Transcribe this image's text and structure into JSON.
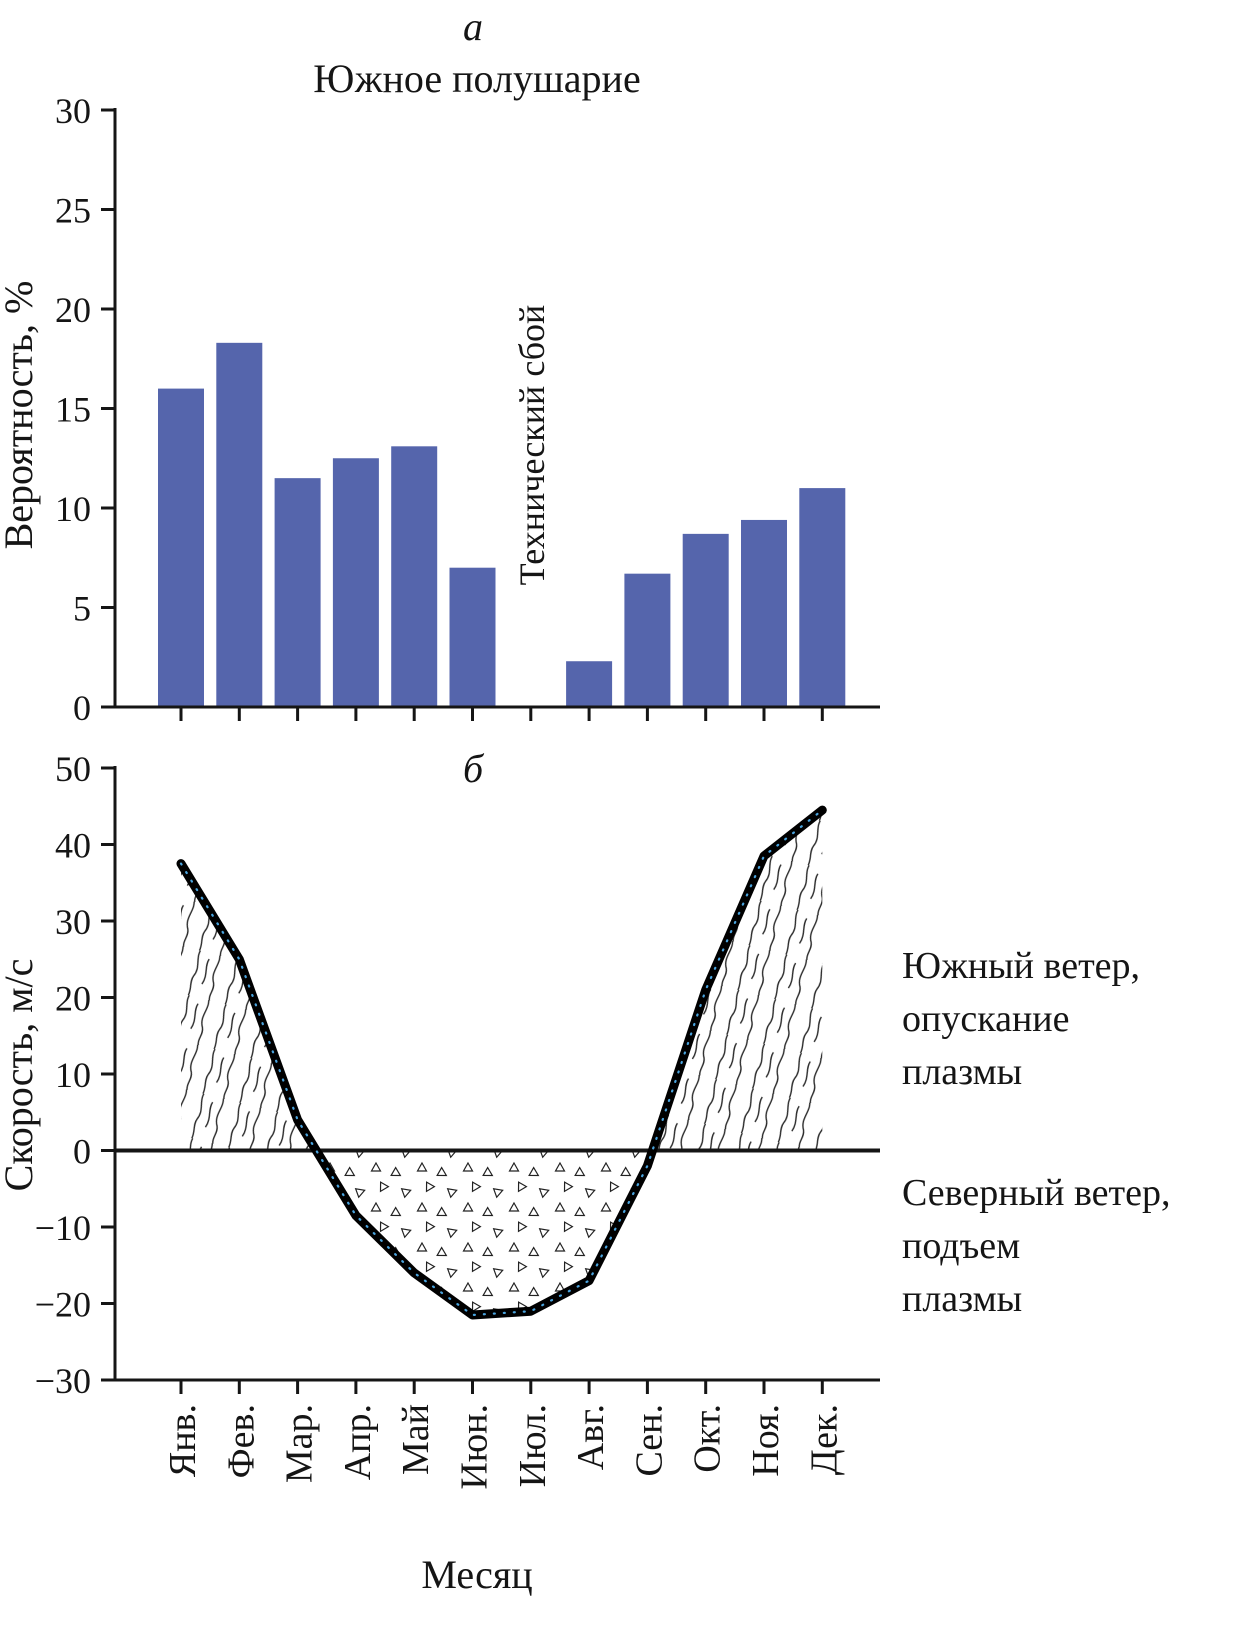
{
  "figure": {
    "panel_a_label": "а",
    "panel_b_label": "б"
  },
  "panel_a": {
    "title": "Южное полушарие",
    "ylabel": "Вероятность, %",
    "missing_label": "Технический сбой"
  },
  "panel_b": {
    "ylabel": "Скорость, м/с",
    "xlabel": "Месяц",
    "annotation_positive_lines": [
      "Южный ветер,",
      "опускание",
      "плазмы"
    ],
    "annotation_negative_lines": [
      "Северный ветер,",
      "подъем",
      "плазмы"
    ]
  },
  "chart_data": [
    {
      "type": "bar",
      "panel": "а",
      "title": "Южное полушарие",
      "ylabel": "Вероятность, %",
      "categories": [
        "Янв.",
        "Фев.",
        "Мар.",
        "Апр.",
        "Май",
        "Июн.",
        "Июл.",
        "Авг.",
        "Сен.",
        "Окт.",
        "Ноя.",
        "Дек."
      ],
      "values": [
        16.0,
        18.3,
        11.5,
        12.5,
        13.1,
        7.0,
        null,
        2.3,
        6.7,
        8.7,
        9.4,
        11.0
      ],
      "missing_category": "Июл.",
      "missing_note": "Технический сбой",
      "ylim": [
        0,
        30
      ],
      "yticks": [
        0,
        5,
        10,
        15,
        20,
        25,
        30
      ],
      "bar_color": "#5565ac",
      "grid": false,
      "legend": "none"
    },
    {
      "type": "line",
      "panel": "б",
      "ylabel": "Скорость, м/с",
      "xlabel": "Месяц",
      "categories": [
        "Янв.",
        "Фев.",
        "Мар.",
        "Апр.",
        "Май",
        "Июн.",
        "Июл.",
        "Авг.",
        "Сен.",
        "Окт.",
        "Ноя.",
        "Дек."
      ],
      "values": [
        37.5,
        25,
        4,
        -8.5,
        -16,
        -21.5,
        -21,
        -17,
        -2,
        21,
        38.5,
        44.5
      ],
      "ylim": [
        -30,
        50
      ],
      "yticks": [
        -30,
        -20,
        -10,
        0,
        10,
        20,
        30,
        40,
        50
      ],
      "zero_line": true,
      "line_color": "#000000",
      "line_overlay_dots_color": "#4aa3dd",
      "fill_above_zero": "diagonal-hatch",
      "fill_below_zero": "triangle-stipple",
      "annotations": [
        {
          "text": "Южный ветер, опускание плазмы",
          "region": "above-zero"
        },
        {
          "text": "Северный ветер, подъем плазмы",
          "region": "below-zero"
        }
      ],
      "grid": false,
      "legend": "none"
    }
  ]
}
